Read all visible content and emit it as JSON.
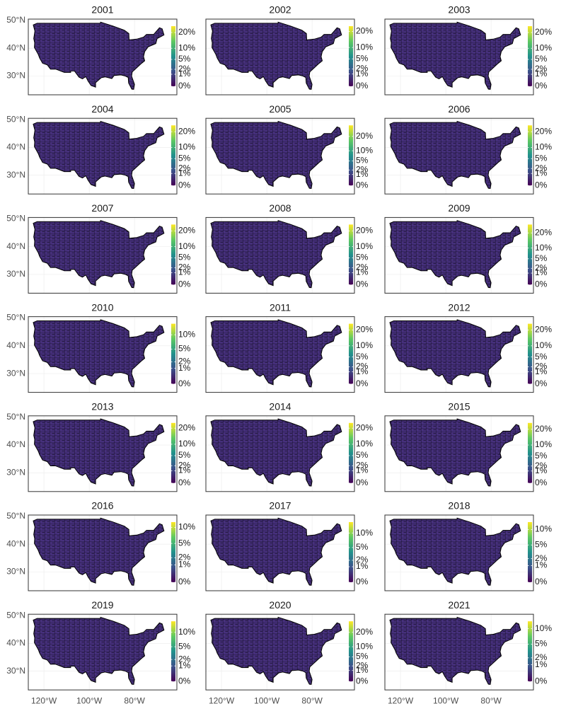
{
  "xlim": [
    -126.9,
    -61.3
  ],
  "ylim": [
    23.25,
    50.5
  ],
  "lat_ticks": [
    {
      "value": 50,
      "label": "50°N"
    },
    {
      "value": 40,
      "label": "40°N"
    },
    {
      "value": 30,
      "label": "30°N"
    }
  ],
  "lon_ticks": [
    {
      "value": -120,
      "label": "120°W"
    },
    {
      "value": -100,
      "label": "100°W"
    },
    {
      "value": -80,
      "label": "80°W"
    }
  ],
  "colorbar_scale": "sqrt",
  "panels": [
    {
      "title": "2001",
      "lim": [
        0,
        25
      ],
      "ticks": [
        {
          "value": 0,
          "label": "0%"
        },
        {
          "value": 1,
          "label": "1%"
        },
        {
          "value": 2,
          "label": "2%"
        },
        {
          "value": 5,
          "label": "5%"
        },
        {
          "value": 10,
          "label": "10%"
        },
        {
          "value": 20,
          "label": "20%"
        }
      ]
    },
    {
      "title": "2002",
      "lim": [
        0,
        24
      ],
      "ticks": [
        {
          "value": 0,
          "label": "0%"
        },
        {
          "value": 1,
          "label": "1%"
        },
        {
          "value": 2,
          "label": "2%"
        },
        {
          "value": 5,
          "label": "5%"
        },
        {
          "value": 10,
          "label": "10%"
        },
        {
          "value": 20,
          "label": "20%"
        }
      ]
    },
    {
      "title": "2003",
      "lim": [
        0,
        25
      ],
      "ticks": [
        {
          "value": 0,
          "label": "0%"
        },
        {
          "value": 1,
          "label": "1%"
        },
        {
          "value": 2,
          "label": "2%"
        },
        {
          "value": 5,
          "label": "5%"
        },
        {
          "value": 10,
          "label": "10%"
        },
        {
          "value": 20,
          "label": "20%"
        }
      ]
    },
    {
      "title": "2004",
      "lim": [
        0,
        25
      ],
      "ticks": [
        {
          "value": 0,
          "label": "0%"
        },
        {
          "value": 1,
          "label": "1%"
        },
        {
          "value": 2,
          "label": "2%"
        },
        {
          "value": 5,
          "label": "5%"
        },
        {
          "value": 10,
          "label": "10%"
        },
        {
          "value": 20,
          "label": "20%"
        }
      ]
    },
    {
      "title": "2005",
      "lim": [
        0,
        30
      ],
      "ticks": [
        {
          "value": 0,
          "label": "0%"
        },
        {
          "value": 1,
          "label": "1%"
        },
        {
          "value": 2,
          "label": "2%"
        },
        {
          "value": 5,
          "label": "5%"
        },
        {
          "value": 10,
          "label": "10%"
        },
        {
          "value": 20,
          "label": "20%"
        }
      ]
    },
    {
      "title": "2006",
      "lim": [
        0,
        25
      ],
      "ticks": [
        {
          "value": 0,
          "label": "0%"
        },
        {
          "value": 1,
          "label": "1%"
        },
        {
          "value": 2,
          "label": "2%"
        },
        {
          "value": 5,
          "label": "5%"
        },
        {
          "value": 10,
          "label": "10%"
        },
        {
          "value": 20,
          "label": "20%"
        }
      ]
    },
    {
      "title": "2007",
      "lim": [
        0,
        25
      ],
      "ticks": [
        {
          "value": 0,
          "label": "0%"
        },
        {
          "value": 1,
          "label": "1%"
        },
        {
          "value": 2,
          "label": "2%"
        },
        {
          "value": 5,
          "label": "5%"
        },
        {
          "value": 10,
          "label": "10%"
        },
        {
          "value": 20,
          "label": "20%"
        }
      ]
    },
    {
      "title": "2008",
      "lim": [
        0,
        25
      ],
      "ticks": [
        {
          "value": 0,
          "label": "0%"
        },
        {
          "value": 1,
          "label": "1%"
        },
        {
          "value": 2,
          "label": "2%"
        },
        {
          "value": 5,
          "label": "5%"
        },
        {
          "value": 10,
          "label": "10%"
        },
        {
          "value": 20,
          "label": "20%"
        }
      ]
    },
    {
      "title": "2009",
      "lim": [
        0,
        27
      ],
      "ticks": [
        {
          "value": 0,
          "label": "0%"
        },
        {
          "value": 1,
          "label": "1%"
        },
        {
          "value": 2,
          "label": "2%"
        },
        {
          "value": 5,
          "label": "5%"
        },
        {
          "value": 10,
          "label": "10%"
        },
        {
          "value": 20,
          "label": "20%"
        }
      ]
    },
    {
      "title": "2010",
      "lim": [
        0,
        15
      ],
      "ticks": [
        {
          "value": 0,
          "label": "0%"
        },
        {
          "value": 1,
          "label": "1%"
        },
        {
          "value": 2,
          "label": "2%"
        },
        {
          "value": 5,
          "label": "5%"
        },
        {
          "value": 10,
          "label": "10%"
        }
      ]
    },
    {
      "title": "2011",
      "lim": [
        0,
        25
      ],
      "ticks": [
        {
          "value": 0,
          "label": "0%"
        },
        {
          "value": 1,
          "label": "1%"
        },
        {
          "value": 2,
          "label": "2%"
        },
        {
          "value": 5,
          "label": "5%"
        },
        {
          "value": 10,
          "label": "10%"
        },
        {
          "value": 20,
          "label": "20%"
        }
      ]
    },
    {
      "title": "2012",
      "lim": [
        0,
        25
      ],
      "ticks": [
        {
          "value": 0,
          "label": "0%"
        },
        {
          "value": 1,
          "label": "1%"
        },
        {
          "value": 2,
          "label": "2%"
        },
        {
          "value": 5,
          "label": "5%"
        },
        {
          "value": 10,
          "label": "10%"
        },
        {
          "value": 20,
          "label": "20%"
        }
      ]
    },
    {
      "title": "2013",
      "lim": [
        0,
        24
      ],
      "ticks": [
        {
          "value": 0,
          "label": "0%"
        },
        {
          "value": 1,
          "label": "1%"
        },
        {
          "value": 2,
          "label": "2%"
        },
        {
          "value": 5,
          "label": "5%"
        },
        {
          "value": 10,
          "label": "10%"
        },
        {
          "value": 20,
          "label": "20%"
        }
      ]
    },
    {
      "title": "2014",
      "lim": [
        0,
        24
      ],
      "ticks": [
        {
          "value": 0,
          "label": "0%"
        },
        {
          "value": 1,
          "label": "1%"
        },
        {
          "value": 2,
          "label": "2%"
        },
        {
          "value": 5,
          "label": "5%"
        },
        {
          "value": 10,
          "label": "10%"
        },
        {
          "value": 20,
          "label": "20%"
        }
      ]
    },
    {
      "title": "2015",
      "lim": [
        0,
        25
      ],
      "ticks": [
        {
          "value": 0,
          "label": "0%"
        },
        {
          "value": 1,
          "label": "1%"
        },
        {
          "value": 2,
          "label": "2%"
        },
        {
          "value": 5,
          "label": "5%"
        },
        {
          "value": 10,
          "label": "10%"
        },
        {
          "value": 20,
          "label": "20%"
        }
      ]
    },
    {
      "title": "2016",
      "lim": [
        0,
        12
      ],
      "ticks": [
        {
          "value": 0,
          "label": "0%"
        },
        {
          "value": 1,
          "label": "1%"
        },
        {
          "value": 2,
          "label": "2%"
        },
        {
          "value": 5,
          "label": "5%"
        },
        {
          "value": 10,
          "label": "10%"
        }
      ]
    },
    {
      "title": "2017",
      "lim": [
        0,
        15
      ],
      "ticks": [
        {
          "value": 0,
          "label": "0%"
        },
        {
          "value": 1,
          "label": "1%"
        },
        {
          "value": 2,
          "label": "2%"
        },
        {
          "value": 5,
          "label": "5%"
        },
        {
          "value": 10,
          "label": "10%"
        }
      ]
    },
    {
      "title": "2018",
      "lim": [
        0,
        13
      ],
      "ticks": [
        {
          "value": 0,
          "label": "0%"
        },
        {
          "value": 1,
          "label": "1%"
        },
        {
          "value": 2,
          "label": "2%"
        },
        {
          "value": 5,
          "label": "5%"
        },
        {
          "value": 10,
          "label": "10%"
        }
      ]
    },
    {
      "title": "2019",
      "lim": [
        0,
        15
      ],
      "ticks": [
        {
          "value": 0,
          "label": "0%"
        },
        {
          "value": 1,
          "label": "1%"
        },
        {
          "value": 2,
          "label": "2%"
        },
        {
          "value": 5,
          "label": "5%"
        },
        {
          "value": 10,
          "label": "10%"
        }
      ]
    },
    {
      "title": "2020",
      "lim": [
        0,
        30
      ],
      "ticks": [
        {
          "value": 0,
          "label": "0%"
        },
        {
          "value": 1,
          "label": "1%"
        },
        {
          "value": 2,
          "label": "2%"
        },
        {
          "value": 5,
          "label": "5%"
        },
        {
          "value": 10,
          "label": "10%"
        },
        {
          "value": 20,
          "label": "20%"
        }
      ]
    },
    {
      "title": "2021",
      "lim": [
        0,
        13
      ],
      "ticks": [
        {
          "value": 0,
          "label": "0%"
        },
        {
          "value": 1,
          "label": "1%"
        },
        {
          "value": 2,
          "label": "2%"
        },
        {
          "value": 5,
          "label": "5%"
        },
        {
          "value": 10,
          "label": "10%"
        }
      ]
    }
  ]
}
